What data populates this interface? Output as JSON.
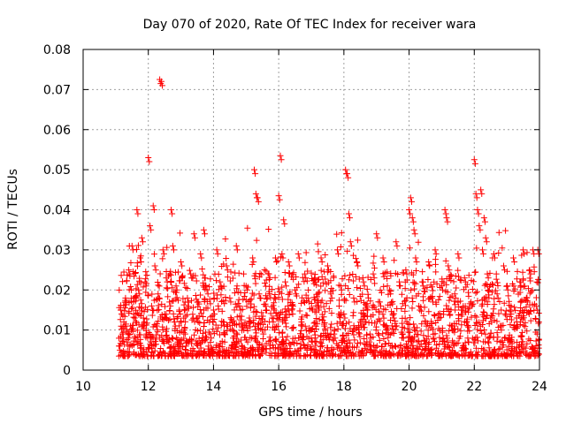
{
  "chart_data": {
    "type": "scatter",
    "title": "Day 070 of 2020, Rate Of TEC Index for receiver wara",
    "xlabel": "GPS time / hours",
    "ylabel": "ROTI / TECUs",
    "xlim": [
      10,
      24
    ],
    "ylim": [
      0,
      0.08
    ],
    "x_ticks": [
      10,
      12,
      14,
      16,
      18,
      20,
      22,
      24
    ],
    "x_tick_labels": [
      "10",
      "12",
      "14",
      "16",
      "18",
      "20",
      "22",
      "24"
    ],
    "y_ticks": [
      0,
      0.01,
      0.02,
      0.03,
      0.04,
      0.05,
      0.06,
      0.07,
      0.08
    ],
    "y_tick_labels": [
      "0",
      "0.01",
      "0.02",
      "0.03",
      "0.04",
      "0.05",
      "0.06",
      "0.07",
      "0.08"
    ],
    "grid": true,
    "marker": "+",
    "color": "#ff0000",
    "series": [
      {
        "name": "ROTI",
        "points": [
          [
            11.1,
            0.006
          ],
          [
            11.15,
            0.015
          ],
          [
            11.2,
            0.009
          ],
          [
            11.25,
            0.012
          ],
          [
            11.3,
            0.018
          ],
          [
            11.35,
            0.007
          ],
          [
            11.4,
            0.025
          ],
          [
            11.45,
            0.011
          ],
          [
            11.5,
            0.031
          ],
          [
            11.55,
            0.014
          ],
          [
            11.6,
            0.008
          ],
          [
            11.65,
            0.04
          ],
          [
            11.7,
            0.02
          ],
          [
            11.75,
            0.028
          ],
          [
            11.8,
            0.033
          ],
          [
            11.85,
            0.013
          ],
          [
            11.9,
            0.022
          ],
          [
            11.95,
            0.009
          ],
          [
            12.0,
            0.053
          ],
          [
            12.05,
            0.036
          ],
          [
            12.1,
            0.016
          ],
          [
            12.15,
            0.041
          ],
          [
            12.2,
            0.026
          ],
          [
            12.25,
            0.011
          ],
          [
            12.3,
            0.019
          ],
          [
            12.35,
            0.0725
          ],
          [
            12.4,
            0.072
          ],
          [
            12.45,
            0.03
          ],
          [
            12.5,
            0.014
          ],
          [
            12.55,
            0.023
          ],
          [
            12.6,
            0.008
          ],
          [
            12.65,
            0.017
          ],
          [
            12.7,
            0.04
          ],
          [
            12.75,
            0.031
          ],
          [
            12.8,
            0.012
          ],
          [
            12.85,
            0.021
          ],
          [
            12.9,
            0.007
          ],
          [
            12.95,
            0.015
          ],
          [
            13.0,
            0.027
          ],
          [
            13.1,
            0.01
          ],
          [
            13.2,
            0.018
          ],
          [
            13.3,
            0.024
          ],
          [
            13.4,
            0.034
          ],
          [
            13.5,
            0.013
          ],
          [
            13.6,
            0.029
          ],
          [
            13.7,
            0.035
          ],
          [
            13.8,
            0.02
          ],
          [
            13.9,
            0.009
          ],
          [
            14.0,
            0.015
          ],
          [
            14.1,
            0.03
          ],
          [
            14.2,
            0.022
          ],
          [
            14.3,
            0.012
          ],
          [
            14.4,
            0.026
          ],
          [
            14.5,
            0.018
          ],
          [
            14.6,
            0.008
          ],
          [
            14.7,
            0.031
          ],
          [
            14.8,
            0.016
          ],
          [
            14.9,
            0.011
          ],
          [
            15.0,
            0.021
          ],
          [
            15.1,
            0.013
          ],
          [
            15.2,
            0.028
          ],
          [
            15.25,
            0.05
          ],
          [
            15.3,
            0.044
          ],
          [
            15.35,
            0.043
          ],
          [
            15.4,
            0.019
          ],
          [
            15.5,
            0.01
          ],
          [
            15.6,
            0.016
          ],
          [
            15.7,
            0.024
          ],
          [
            15.8,
            0.013
          ],
          [
            15.9,
            0.028
          ],
          [
            16.0,
            0.0435
          ],
          [
            16.05,
            0.0535
          ],
          [
            16.1,
            0.029
          ],
          [
            16.15,
            0.0375
          ],
          [
            16.2,
            0.022
          ],
          [
            16.3,
            0.027
          ],
          [
            16.4,
            0.015
          ],
          [
            16.5,
            0.02
          ],
          [
            16.6,
            0.029
          ],
          [
            16.7,
            0.012
          ],
          [
            16.8,
            0.024
          ],
          [
            16.9,
            0.018
          ],
          [
            17.0,
            0.008
          ],
          [
            17.1,
            0.023
          ],
          [
            17.2,
            0.016
          ],
          [
            17.3,
            0.028
          ],
          [
            17.4,
            0.011
          ],
          [
            17.5,
            0.026
          ],
          [
            17.6,
            0.019
          ],
          [
            17.7,
            0.009
          ],
          [
            17.8,
            0.03
          ],
          [
            17.9,
            0.021
          ],
          [
            18.0,
            0.014
          ],
          [
            18.05,
            0.05
          ],
          [
            18.1,
            0.049
          ],
          [
            18.15,
            0.039
          ],
          [
            18.2,
            0.032
          ],
          [
            18.3,
            0.018
          ],
          [
            18.4,
            0.027
          ],
          [
            18.5,
            0.012
          ],
          [
            18.6,
            0.022
          ],
          [
            18.7,
            0.016
          ],
          [
            18.8,
            0.009
          ],
          [
            18.9,
            0.024
          ],
          [
            19.0,
            0.034
          ],
          [
            19.1,
            0.017
          ],
          [
            19.2,
            0.028
          ],
          [
            19.3,
            0.011
          ],
          [
            19.4,
            0.02
          ],
          [
            19.5,
            0.014
          ],
          [
            19.6,
            0.032
          ],
          [
            19.7,
            0.022
          ],
          [
            19.8,
            0.009
          ],
          [
            19.9,
            0.025
          ],
          [
            20.0,
            0.04
          ],
          [
            20.05,
            0.043
          ],
          [
            20.1,
            0.038
          ],
          [
            20.15,
            0.035
          ],
          [
            20.2,
            0.028
          ],
          [
            20.3,
            0.016
          ],
          [
            20.4,
            0.022
          ],
          [
            20.5,
            0.012
          ],
          [
            20.6,
            0.027
          ],
          [
            20.7,
            0.018
          ],
          [
            20.8,
            0.03
          ],
          [
            20.9,
            0.014
          ],
          [
            21.0,
            0.021
          ],
          [
            21.1,
            0.04
          ],
          [
            21.15,
            0.038
          ],
          [
            21.2,
            0.026
          ],
          [
            21.3,
            0.011
          ],
          [
            21.4,
            0.019
          ],
          [
            21.5,
            0.029
          ],
          [
            21.6,
            0.015
          ],
          [
            21.7,
            0.023
          ],
          [
            21.8,
            0.008
          ],
          [
            21.9,
            0.017
          ],
          [
            22.0,
            0.0525
          ],
          [
            22.05,
            0.044
          ],
          [
            22.1,
            0.04
          ],
          [
            22.15,
            0.036
          ],
          [
            22.2,
            0.045
          ],
          [
            22.25,
            0.03
          ],
          [
            22.3,
            0.038
          ],
          [
            22.35,
            0.033
          ],
          [
            22.4,
            0.024
          ],
          [
            22.5,
            0.013
          ],
          [
            22.6,
            0.029
          ],
          [
            22.7,
            0.019
          ],
          [
            22.8,
            0.011
          ],
          [
            22.9,
            0.026
          ],
          [
            23.0,
            0.021
          ],
          [
            23.1,
            0.015
          ],
          [
            23.2,
            0.028
          ],
          [
            23.3,
            0.012
          ],
          [
            23.4,
            0.022
          ],
          [
            23.5,
            0.03
          ],
          [
            23.6,
            0.018
          ],
          [
            23.7,
            0.025
          ],
          [
            23.8,
            0.03
          ],
          [
            23.9,
            0.016
          ],
          [
            23.95,
            0.03
          ]
        ]
      }
    ],
    "dense_cloud": {
      "x_range": [
        11.1,
        24
      ],
      "y_min": 0.0035,
      "y_mode": 0.007,
      "y_spread": 0.006,
      "count": 2200
    }
  }
}
